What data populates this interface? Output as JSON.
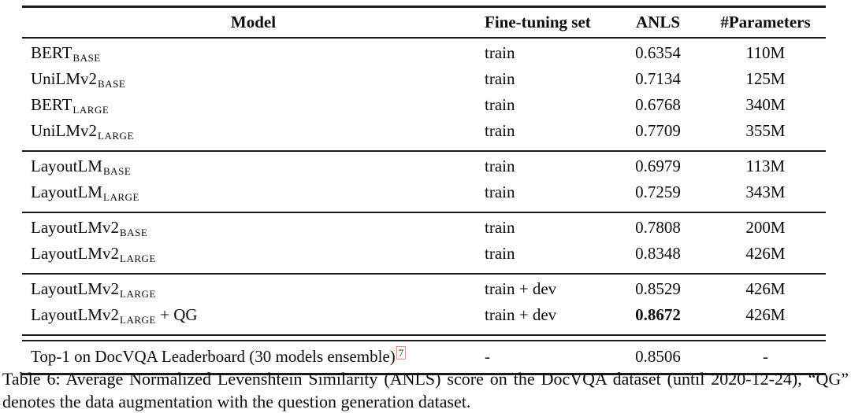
{
  "colors": {
    "text": "#0b0b0b",
    "rule": "#1b1b1b",
    "footnote_box_border": "#ef8a80",
    "background": "#ffffff"
  },
  "table": {
    "headers": {
      "model": "Model",
      "finetune": "Fine-tuning set",
      "anls": "ANLS",
      "params": "#Parameters"
    },
    "groups": [
      {
        "rows": [
          {
            "model_base": "BERT",
            "model_sub": "BASE",
            "model_suffix": "",
            "footnote": "",
            "finetune": "train",
            "anls": "0.6354",
            "anls_bold": false,
            "params": "110M"
          },
          {
            "model_base": "UniLMv2",
            "model_sub": "BASE",
            "model_suffix": "",
            "footnote": "",
            "finetune": "train",
            "anls": "0.7134",
            "anls_bold": false,
            "params": "125M"
          },
          {
            "model_base": "BERT",
            "model_sub": "LARGE",
            "model_suffix": "",
            "footnote": "",
            "finetune": "train",
            "anls": "0.6768",
            "anls_bold": false,
            "params": "340M"
          },
          {
            "model_base": "UniLMv2",
            "model_sub": "LARGE",
            "model_suffix": "",
            "footnote": "",
            "finetune": "train",
            "anls": "0.7709",
            "anls_bold": false,
            "params": "355M"
          }
        ]
      },
      {
        "rows": [
          {
            "model_base": "LayoutLM",
            "model_sub": "BASE",
            "model_suffix": "",
            "footnote": "",
            "finetune": "train",
            "anls": "0.6979",
            "anls_bold": false,
            "params": "113M"
          },
          {
            "model_base": "LayoutLM",
            "model_sub": "LARGE",
            "model_suffix": "",
            "footnote": "",
            "finetune": "train",
            "anls": "0.7259",
            "anls_bold": false,
            "params": "343M"
          }
        ]
      },
      {
        "rows": [
          {
            "model_base": "LayoutLMv2",
            "model_sub": "BASE",
            "model_suffix": "",
            "footnote": "",
            "finetune": "train",
            "anls": "0.7808",
            "anls_bold": false,
            "params": "200M"
          },
          {
            "model_base": "LayoutLMv2",
            "model_sub": "LARGE",
            "model_suffix": "",
            "footnote": "",
            "finetune": "train",
            "anls": "0.8348",
            "anls_bold": false,
            "params": "426M"
          }
        ]
      },
      {
        "rows": [
          {
            "model_base": "LayoutLMv2",
            "model_sub": "LARGE",
            "model_suffix": "",
            "footnote": "",
            "finetune": "train + dev",
            "anls": "0.8529",
            "anls_bold": false,
            "params": "426M"
          },
          {
            "model_base": "LayoutLMv2",
            "model_sub": "LARGE",
            "model_suffix": " + QG",
            "footnote": "",
            "finetune": "train + dev",
            "anls": "0.8672",
            "anls_bold": true,
            "params": "426M"
          }
        ]
      },
      {
        "rows": [
          {
            "model_base": "Top-1 on DocVQA Leaderboard (30 models ensemble)",
            "model_sub": "",
            "model_suffix": "",
            "footnote": "7",
            "finetune": "-",
            "anls": "0.8506",
            "anls_bold": false,
            "params": "-"
          }
        ]
      }
    ]
  },
  "caption": {
    "text": "Table 6: Average Normalized Levenshtein Similarity (ANLS) score on the DocVQA dataset (until 2020-12-24), “QG” denotes the data augmentation with the question generation dataset."
  }
}
